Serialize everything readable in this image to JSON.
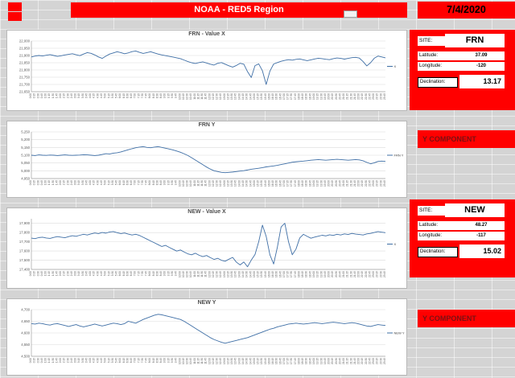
{
  "header": {
    "title": "NOAA - RED5 Region",
    "date": "7/4/2020"
  },
  "panels": {
    "frn": {
      "site_label": "SITE:",
      "site": "FRN",
      "latitude_label": "Latitude:",
      "latitude": "37.09",
      "longitude_label": "Longitude:",
      "longitude": "-120",
      "declination_label": "Declination:",
      "declination": "13.17",
      "component_label": "Y COMPONENT"
    },
    "new": {
      "site_label": "SITE:",
      "site": "NEW",
      "latitude_label": "Latitude:",
      "latitude": "48.27",
      "longitude_label": "Longitude:",
      "longitude": "-117",
      "declination_label": "Declination:",
      "declination": "15.02",
      "component_label": "Y COMPONENT"
    }
  },
  "times": [
    "0:00",
    "0:15",
    "0:30",
    "0:45",
    "1:00",
    "1:15",
    "1:30",
    "1:45",
    "2:00",
    "2:15",
    "2:30",
    "2:45",
    "3:00",
    "3:15",
    "3:30",
    "3:45",
    "4:00",
    "4:15",
    "4:30",
    "4:45",
    "5:00",
    "5:15",
    "5:30",
    "5:45",
    "6:00",
    "6:15",
    "6:30",
    "6:45",
    "7:00",
    "7:15",
    "7:30",
    "7:45",
    "8:00",
    "8:15",
    "8:30",
    "8:45",
    "9:00",
    "9:15",
    "9:30",
    "9:45",
    "10:00",
    "10:15",
    "10:30",
    "10:45",
    "11:00",
    "11:15",
    "11:30",
    "11:45",
    "12:00",
    "12:15",
    "12:30",
    "12:45",
    "13:00",
    "13:15",
    "13:30",
    "13:45",
    "14:00",
    "14:15",
    "14:30",
    "14:45",
    "15:00",
    "15:15",
    "15:30",
    "15:45",
    "16:00",
    "16:15",
    "16:30",
    "16:45",
    "17:00",
    "17:15",
    "17:30",
    "17:45",
    "18:00",
    "18:15",
    "18:30",
    "18:45",
    "19:00",
    "19:15",
    "19:30",
    "19:45",
    "20:00",
    "20:15",
    "20:30",
    "20:45",
    "21:00",
    "21:15",
    "21:30",
    "21:45",
    "22:00",
    "22:15",
    "22:30",
    "22:45",
    "23:00",
    "23:15",
    "23:30",
    "23:45"
  ],
  "chart_data": [
    {
      "type": "line",
      "title": "FRN - Value X",
      "legend": "X",
      "ymin": 21650,
      "ymax": 22000,
      "ystep": 50,
      "line_color": "#3f6fa6",
      "values": [
        21890,
        21896,
        21900,
        21897,
        21902,
        21906,
        21900,
        21894,
        21898,
        21904,
        21908,
        21912,
        21905,
        21899,
        21910,
        21920,
        21915,
        21904,
        21890,
        21880,
        21896,
        21910,
        21918,
        21926,
        21920,
        21912,
        21918,
        21927,
        21931,
        21922,
        21914,
        21920,
        21926,
        21918,
        21910,
        21904,
        21899,
        21894,
        21889,
        21884,
        21878,
        21868,
        21858,
        21850,
        21845,
        21851,
        21856,
        21848,
        21840,
        21834,
        21846,
        21851,
        21840,
        21829,
        21820,
        21831,
        21846,
        21840,
        21788,
        21748,
        21830,
        21842,
        21794,
        21700,
        21792,
        21841,
        21851,
        21860,
        21866,
        21871,
        21868,
        21873,
        21876,
        21870,
        21864,
        21870,
        21876,
        21881,
        21878,
        21874,
        21871,
        21878,
        21883,
        21880,
        21875,
        21880,
        21885,
        21887,
        21882,
        21858,
        21828,
        21850,
        21881,
        21896,
        21890,
        21884
      ]
    },
    {
      "type": "line",
      "title": "FRN Y",
      "legend": "FRN Y",
      "ymin": 4950,
      "ymax": 5250,
      "ystep": 50,
      "line_color": "#3f6fa6",
      "values": [
        5100,
        5098,
        5102,
        5100,
        5099,
        5101,
        5100,
        5098,
        5100,
        5102,
        5100,
        5099,
        5100,
        5101,
        5103,
        5102,
        5100,
        5098,
        5100,
        5105,
        5110,
        5108,
        5113,
        5116,
        5121,
        5128,
        5135,
        5142,
        5148,
        5152,
        5155,
        5150,
        5148,
        5152,
        5155,
        5150,
        5145,
        5140,
        5134,
        5127,
        5119,
        5109,
        5098,
        5084,
        5069,
        5054,
        5039,
        5024,
        5011,
        5000,
        4995,
        4990,
        4988,
        4990,
        4992,
        4995,
        4998,
        5001,
        5005,
        5010,
        5013,
        5016,
        5020,
        5025,
        5028,
        5031,
        5035,
        5040,
        5045,
        5050,
        5055,
        5058,
        5060,
        5062,
        5065,
        5068,
        5070,
        5072,
        5070,
        5068,
        5070,
        5072,
        5074,
        5072,
        5070,
        5068,
        5070,
        5072,
        5070,
        5064,
        5054,
        5045,
        5051,
        5060,
        5062,
        5060
      ]
    },
    {
      "type": "line",
      "title": "NEW - Value X",
      "legend": "X",
      "ymin": 17400,
      "ymax": 17950,
      "ystep": 100,
      "line_color": "#3f6fa6",
      "values": [
        17740,
        17734,
        17746,
        17750,
        17741,
        17737,
        17748,
        17756,
        17750,
        17744,
        17756,
        17766,
        17760,
        17771,
        17781,
        17774,
        17786,
        17796,
        17789,
        17801,
        17794,
        17806,
        17811,
        17799,
        17789,
        17796,
        17784,
        17774,
        17781,
        17769,
        17749,
        17729,
        17709,
        17689,
        17669,
        17649,
        17661,
        17639,
        17619,
        17599,
        17611,
        17589,
        17569,
        17559,
        17576,
        17554,
        17539,
        17551,
        17529,
        17509,
        17521,
        17499,
        17489,
        17511,
        17531,
        17479,
        17449,
        17481,
        17429,
        17501,
        17561,
        17701,
        17881,
        17759,
        17559,
        17459,
        17641,
        17861,
        17901,
        17699,
        17559,
        17621,
        17741,
        17781,
        17759,
        17739,
        17751,
        17761,
        17771,
        17764,
        17776,
        17769,
        17781,
        17774,
        17786,
        17779,
        17791,
        17784,
        17779,
        17774,
        17786,
        17791,
        17801,
        17811,
        17804,
        17799
      ]
    },
    {
      "type": "line",
      "title": "NEW Y",
      "legend": "NEW Y",
      "ymin": 4500,
      "ymax": 4700,
      "ystep": 50,
      "line_color": "#3f6fa6",
      "values": [
        4640,
        4638,
        4642,
        4640,
        4636,
        4634,
        4638,
        4640,
        4636,
        4632,
        4628,
        4632,
        4636,
        4630,
        4626,
        4630,
        4634,
        4638,
        4634,
        4630,
        4634,
        4638,
        4642,
        4640,
        4636,
        4640,
        4650,
        4646,
        4642,
        4650,
        4658,
        4664,
        4670,
        4676,
        4680,
        4678,
        4674,
        4670,
        4666,
        4662,
        4658,
        4650,
        4640,
        4630,
        4620,
        4610,
        4600,
        4590,
        4580,
        4572,
        4566,
        4560,
        4556,
        4560,
        4564,
        4568,
        4572,
        4576,
        4580,
        4586,
        4592,
        4598,
        4604,
        4610,
        4616,
        4620,
        4626,
        4630,
        4634,
        4638,
        4640,
        4642,
        4640,
        4638,
        4640,
        4642,
        4644,
        4642,
        4640,
        4642,
        4644,
        4646,
        4644,
        4642,
        4640,
        4642,
        4644,
        4642,
        4638,
        4634,
        4630,
        4628,
        4632,
        4636,
        4634,
        4632
      ]
    }
  ]
}
